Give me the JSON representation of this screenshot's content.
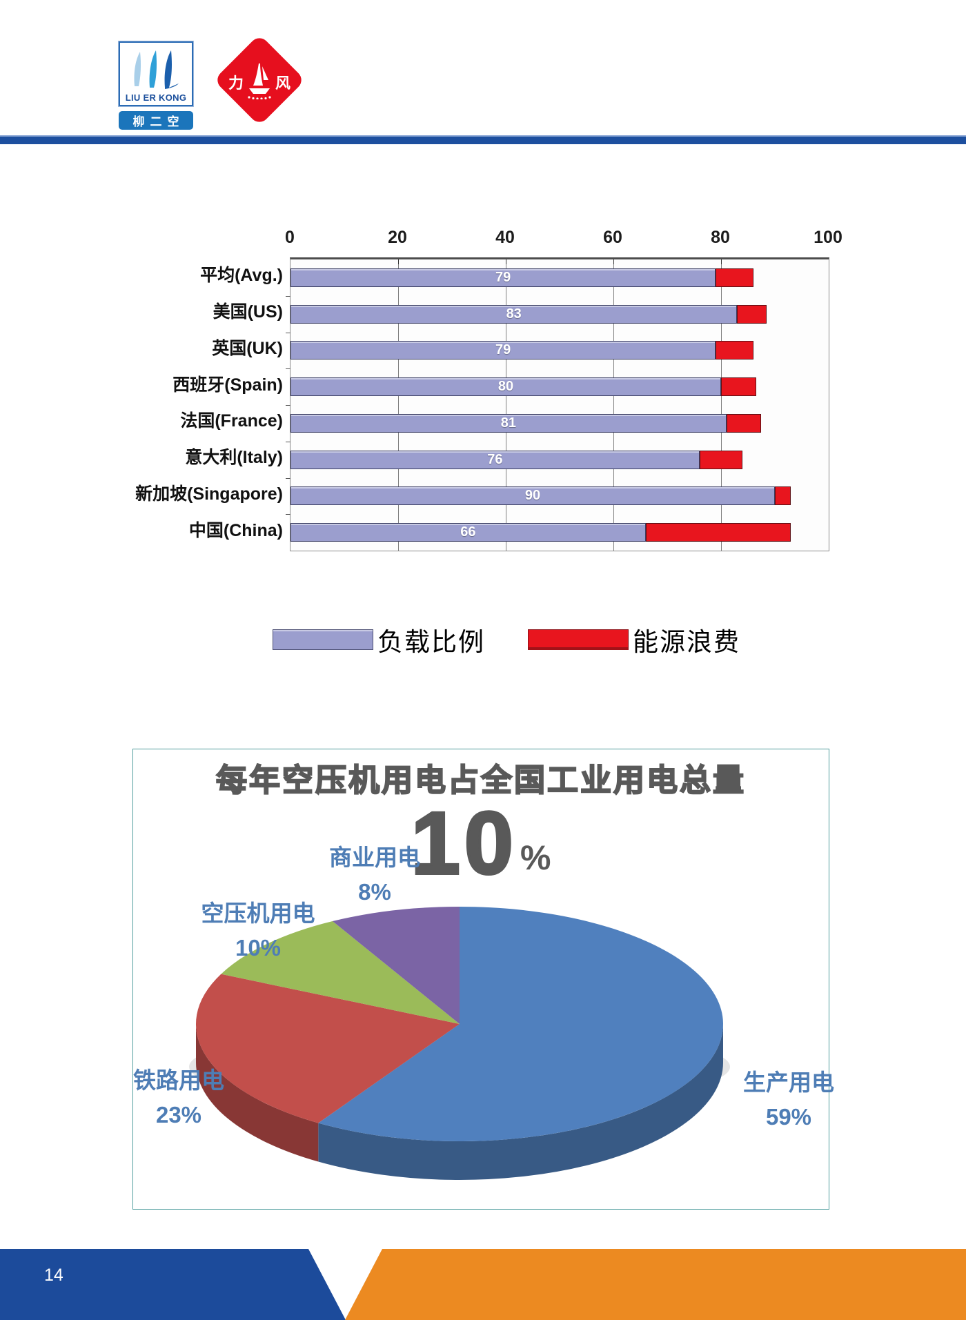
{
  "page": {
    "number": "14"
  },
  "header": {
    "logo1": {
      "name": "LIU ER KONG",
      "cn": "柳二空"
    },
    "logo2": {
      "left": "力",
      "right": "风"
    }
  },
  "chart_data": [
    {
      "type": "bar",
      "orientation": "horizontal-stacked",
      "title": "",
      "categories": [
        "平均(Avg.)",
        "美国(US)",
        "英国(UK)",
        "西班牙(Spain)",
        "法国(France)",
        "意大利(Italy)",
        "新加坡(Singapore)",
        "中国(China)"
      ],
      "series": [
        {
          "name": "负载比例",
          "values": [
            79,
            83,
            79,
            80,
            81,
            76,
            90,
            66
          ],
          "color": "#9b9ece",
          "labels_shown": true
        },
        {
          "name": "能源浪费",
          "values": [
            7,
            5.5,
            7,
            6.5,
            6.5,
            8,
            3,
            27
          ],
          "color": "#e8151e",
          "labels_shown": false
        }
      ],
      "xlim": [
        0,
        100
      ],
      "xticks": [
        0,
        20,
        40,
        60,
        80,
        100
      ],
      "grid": "vertical",
      "legend_position": "bottom"
    },
    {
      "type": "pie",
      "style": "3d",
      "title": "每年空压机用电占全国工业用电总量",
      "callout": {
        "value": "10",
        "unit": "%"
      },
      "direction": "clockwise",
      "start_angle_deg": 0,
      "label_color": "#4e7db5",
      "slices": [
        {
          "label": "生产用电",
          "pct": 59,
          "color": "#5080be"
        },
        {
          "label": "铁路用电",
          "pct": 23,
          "color": "#c24f4b"
        },
        {
          "label": "空压机用电",
          "pct": 10,
          "color": "#9bbb59"
        },
        {
          "label": "商业用电",
          "pct": 8,
          "color": "#7b64a5"
        }
      ]
    }
  ]
}
